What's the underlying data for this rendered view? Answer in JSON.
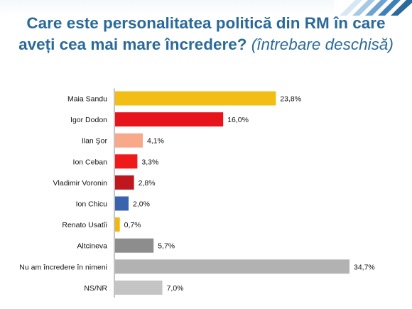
{
  "header": {
    "title_main": "Care este personalitatea politică din RM în care aveți cea mai mare încredere?",
    "title_note": "(întrebare deschisă)"
  },
  "chart_data": {
    "type": "bar",
    "orientation": "horizontal",
    "categories": [
      "Maia Sandu",
      "Igor Dodon",
      "Ilan Şor",
      "Ion Ceban",
      "Vladimir Voronin",
      "Ion Chicu",
      "Renato Usatîi",
      "Altcineva",
      "Nu am încredere în nimeni",
      "NS/NR"
    ],
    "values": [
      23.8,
      16.0,
      4.1,
      3.3,
      2.8,
      2.0,
      0.7,
      5.7,
      34.7,
      7.0
    ],
    "value_labels": [
      "23,8%",
      "16,0%",
      "4,1%",
      "3,3%",
      "2,8%",
      "2,0%",
      "0,7%",
      "5,7%",
      "34,7%",
      "7,0%"
    ],
    "colors": [
      "#f2be14",
      "#e8141c",
      "#f7a98a",
      "#ef1a1a",
      "#c0161e",
      "#3a63ad",
      "#f0b80e",
      "#8d8d8d",
      "#b2b2b2",
      "#c4c4c4"
    ],
    "xlim": [
      0,
      34.7
    ],
    "grid": false,
    "legend": "none"
  }
}
